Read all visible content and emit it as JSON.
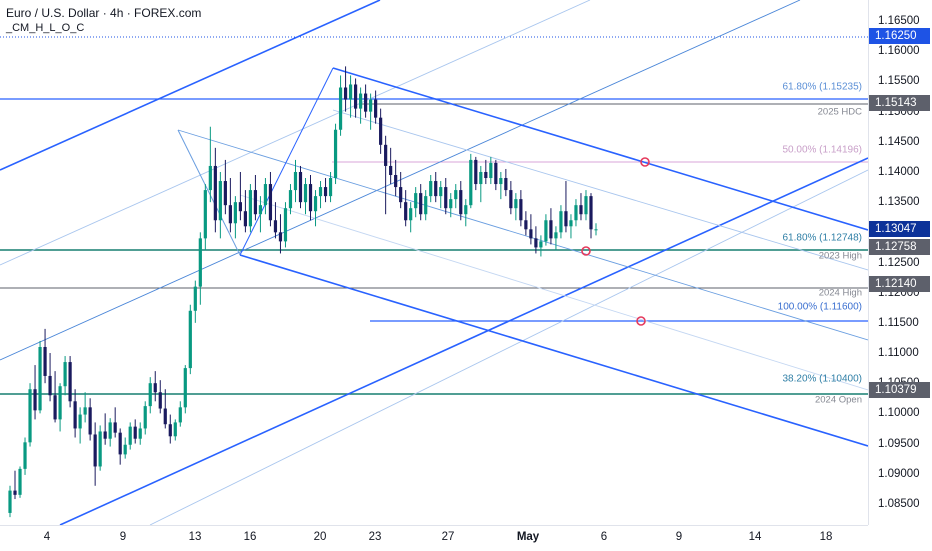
{
  "header": {
    "title": "Euro / U.S. Dollar · 4h · FOREX.com",
    "indicator": "_CM_H_L_O_C"
  },
  "chart_data": {
    "type": "candlestick",
    "ylim": [
      1.0815,
      1.1685
    ],
    "y_ticks": [
      1.165,
      1.16,
      1.155,
      1.15,
      1.145,
      1.14,
      1.135,
      1.13,
      1.125,
      1.12,
      1.115,
      1.11,
      1.105,
      1.1,
      1.095,
      1.09,
      1.085
    ],
    "y_tick_labels": [
      "1.16500",
      "1.16000",
      "1.15500",
      "1.15000",
      "1.14500",
      "1.14000",
      "1.13500",
      "1.13000",
      "1.12500",
      "1.12000",
      "1.11500",
      "1.11000",
      "1.10500",
      "1.10000",
      "1.09500",
      "1.09000",
      "1.08500"
    ],
    "x_tick_labels": [
      {
        "label": "4",
        "bold": false
      },
      {
        "label": "9",
        "bold": false
      },
      {
        "label": "13",
        "bold": false
      },
      {
        "label": "16",
        "bold": false
      },
      {
        "label": "20",
        "bold": false
      },
      {
        "label": "23",
        "bold": false
      },
      {
        "label": "27",
        "bold": false
      },
      {
        "label": "May",
        "bold": true
      },
      {
        "label": "6",
        "bold": false
      },
      {
        "label": "9",
        "bold": false
      },
      {
        "label": "14",
        "bold": false
      },
      {
        "label": "18",
        "bold": false
      }
    ],
    "price_badges": [
      {
        "value": "1.16250",
        "bg": "#1e53e5",
        "color": "#ffffff",
        "price": 1.1625
      },
      {
        "value": "1.15143",
        "bg": "#5d606b",
        "color": "#ffffff",
        "price": 1.15143
      },
      {
        "value": "1.13047",
        "bg": "#0c3299",
        "color": "#ffffff",
        "price": 1.13047
      },
      {
        "value": "1.12758",
        "bg": "#5d606b",
        "color": "#ffffff",
        "price": 1.12758
      },
      {
        "value": "1.12140",
        "bg": "#5d606b",
        "color": "#ffffff",
        "price": 1.1214
      },
      {
        "value": "1.10379",
        "bg": "#5d606b",
        "color": "#ffffff",
        "price": 1.10379
      }
    ],
    "level_labels": [
      {
        "text": "2025 HDC",
        "price": 1.1514
      },
      {
        "text": "2023 High",
        "price": 1.1275
      },
      {
        "text": "2024 High",
        "price": 1.1214
      },
      {
        "text": "2024 Open",
        "price": 1.1037
      }
    ],
    "fib_labels": [
      {
        "text": "61.80% (1.15235)",
        "price": 1.15235,
        "color": "#5b8fd6"
      },
      {
        "text": "50.00% (1.14196)",
        "price": 1.14196,
        "color": "#c9a0c9"
      },
      {
        "text": "61.80% (1.12748)",
        "price": 1.12748,
        "color": "#2f7fa6"
      },
      {
        "text": "100.00% (1.11600)",
        "price": 1.116,
        "color": "#3a6fd0"
      },
      {
        "text": "38.20% (1.10400)",
        "price": 1.104,
        "color": "#2f7fa6"
      }
    ],
    "candles": [
      [
        1.0835,
        1.088,
        1.0828,
        1.0872
      ],
      [
        1.0872,
        1.0905,
        1.0858,
        1.0865
      ],
      [
        1.0865,
        1.0912,
        1.086,
        1.0908
      ],
      [
        1.0908,
        1.096,
        1.0898,
        1.0952
      ],
      [
        1.0952,
        1.105,
        1.0945,
        1.104
      ],
      [
        1.104,
        1.108,
        1.099,
        1.1005
      ],
      [
        1.1005,
        1.112,
        1.1,
        1.111
      ],
      [
        1.111,
        1.114,
        1.105,
        1.1062
      ],
      [
        1.1062,
        1.11,
        1.102,
        1.103
      ],
      [
        1.103,
        1.107,
        1.0985,
        1.099
      ],
      [
        1.099,
        1.105,
        1.097,
        1.1045
      ],
      [
        1.1045,
        1.1095,
        1.103,
        1.1085
      ],
      [
        1.1085,
        1.1095,
        1.101,
        1.102
      ],
      [
        1.102,
        1.104,
        1.096,
        1.0975
      ],
      [
        1.0975,
        1.101,
        1.095,
        1.0998
      ],
      [
        1.0998,
        1.1035,
        1.0985,
        1.101
      ],
      [
        1.101,
        1.1025,
        1.0955,
        1.0965
      ],
      [
        1.0965,
        1.0985,
        1.088,
        1.0912
      ],
      [
        1.0912,
        1.098,
        1.0905,
        1.097
      ],
      [
        1.097,
        1.1,
        1.0948,
        1.0958
      ],
      [
        1.0958,
        1.0992,
        1.0945,
        1.0985
      ],
      [
        1.0985,
        1.101,
        1.096,
        1.0968
      ],
      [
        1.0968,
        1.0975,
        1.0915,
        1.0932
      ],
      [
        1.0932,
        1.096,
        1.0925,
        1.0948
      ],
      [
        1.0948,
        1.0985,
        1.094,
        1.0978
      ],
      [
        1.0978,
        1.099,
        1.095,
        1.0958
      ],
      [
        1.0958,
        1.0985,
        1.0948,
        1.0975
      ],
      [
        1.0975,
        1.102,
        1.0965,
        1.1012
      ],
      [
        1.1012,
        1.106,
        1.1,
        1.105
      ],
      [
        1.105,
        1.107,
        1.102,
        1.1035
      ],
      [
        1.1035,
        1.1055,
        1.1,
        1.1008
      ],
      [
        1.1008,
        1.104,
        1.0975,
        1.0982
      ],
      [
        1.0982,
        1.0998,
        1.095,
        1.0962
      ],
      [
        1.0962,
        1.099,
        1.0955,
        1.0985
      ],
      [
        1.0985,
        1.102,
        1.0978,
        1.101
      ],
      [
        1.101,
        1.108,
        1.1,
        1.1075
      ],
      [
        1.1075,
        1.118,
        1.1065,
        1.117
      ],
      [
        1.117,
        1.122,
        1.115,
        1.121
      ],
      [
        1.121,
        1.13,
        1.118,
        1.129
      ],
      [
        1.129,
        1.138,
        1.127,
        1.137
      ],
      [
        1.137,
        1.1475,
        1.135,
        1.141
      ],
      [
        1.141,
        1.144,
        1.13,
        1.132
      ],
      [
        1.132,
        1.14,
        1.129,
        1.1385
      ],
      [
        1.1385,
        1.142,
        1.133,
        1.1345
      ],
      [
        1.1345,
        1.139,
        1.13,
        1.1315
      ],
      [
        1.1315,
        1.136,
        1.129,
        1.135
      ],
      [
        1.135,
        1.14,
        1.132,
        1.1335
      ],
      [
        1.1335,
        1.137,
        1.13,
        1.131
      ],
      [
        1.131,
        1.138,
        1.13,
        1.137
      ],
      [
        1.137,
        1.1395,
        1.132,
        1.133
      ],
      [
        1.133,
        1.136,
        1.13,
        1.1345
      ],
      [
        1.1345,
        1.139,
        1.133,
        1.138
      ],
      [
        1.138,
        1.14,
        1.131,
        1.132
      ],
      [
        1.132,
        1.135,
        1.129,
        1.13
      ],
      [
        1.13,
        1.133,
        1.1265,
        1.1285
      ],
      [
        1.1285,
        1.135,
        1.1275,
        1.134
      ],
      [
        1.134,
        1.138,
        1.133,
        1.137
      ],
      [
        1.137,
        1.142,
        1.135,
        1.14
      ],
      [
        1.14,
        1.141,
        1.134,
        1.135
      ],
      [
        1.135,
        1.139,
        1.133,
        1.138
      ],
      [
        1.138,
        1.1395,
        1.132,
        1.1335
      ],
      [
        1.1335,
        1.137,
        1.131,
        1.136
      ],
      [
        1.136,
        1.1385,
        1.134,
        1.1375
      ],
      [
        1.1375,
        1.139,
        1.135,
        1.136
      ],
      [
        1.136,
        1.14,
        1.135,
        1.139
      ],
      [
        1.139,
        1.148,
        1.138,
        1.147
      ],
      [
        1.147,
        1.156,
        1.146,
        1.154
      ],
      [
        1.154,
        1.1575,
        1.15,
        1.152
      ],
      [
        1.152,
        1.156,
        1.149,
        1.1545
      ],
      [
        1.1545,
        1.1555,
        1.149,
        1.1505
      ],
      [
        1.1505,
        1.154,
        1.148,
        1.153
      ],
      [
        1.153,
        1.1545,
        1.149,
        1.15
      ],
      [
        1.15,
        1.153,
        1.147,
        1.152
      ],
      [
        1.152,
        1.1535,
        1.148,
        1.149
      ],
      [
        1.149,
        1.1505,
        1.143,
        1.1445
      ],
      [
        1.1445,
        1.146,
        1.133,
        1.141
      ],
      [
        1.141,
        1.144,
        1.138,
        1.1395
      ],
      [
        1.1395,
        1.142,
        1.136,
        1.1375
      ],
      [
        1.1375,
        1.14,
        1.134,
        1.135
      ],
      [
        1.135,
        1.137,
        1.131,
        1.132
      ],
      [
        1.132,
        1.135,
        1.13,
        1.134
      ],
      [
        1.134,
        1.1375,
        1.1325,
        1.1365
      ],
      [
        1.1365,
        1.138,
        1.132,
        1.133
      ],
      [
        1.133,
        1.137,
        1.132,
        1.136
      ],
      [
        1.136,
        1.1395,
        1.135,
        1.1385
      ],
      [
        1.1385,
        1.14,
        1.135,
        1.136
      ],
      [
        1.136,
        1.1385,
        1.134,
        1.1375
      ],
      [
        1.1375,
        1.139,
        1.133,
        1.134
      ],
      [
        1.134,
        1.1365,
        1.1325,
        1.1355
      ],
      [
        1.1355,
        1.138,
        1.134,
        1.137
      ],
      [
        1.137,
        1.1385,
        1.132,
        1.133
      ],
      [
        1.133,
        1.1355,
        1.131,
        1.1345
      ],
      [
        1.1345,
        1.143,
        1.134,
        1.142
      ],
      [
        1.142,
        1.1425,
        1.137,
        1.138
      ],
      [
        1.138,
        1.141,
        1.135,
        1.14
      ],
      [
        1.14,
        1.142,
        1.138,
        1.139
      ],
      [
        1.139,
        1.1425,
        1.138,
        1.1415
      ],
      [
        1.1415,
        1.142,
        1.137,
        1.138
      ],
      [
        1.138,
        1.14,
        1.1355,
        1.139
      ],
      [
        1.139,
        1.1405,
        1.136,
        1.137
      ],
      [
        1.137,
        1.1385,
        1.133,
        1.134
      ],
      [
        1.134,
        1.1365,
        1.132,
        1.1355
      ],
      [
        1.1355,
        1.137,
        1.131,
        1.132
      ],
      [
        1.132,
        1.1335,
        1.1295,
        1.1305
      ],
      [
        1.1305,
        1.133,
        1.128,
        1.129
      ],
      [
        1.129,
        1.131,
        1.1265,
        1.1275
      ],
      [
        1.1275,
        1.1295,
        1.126,
        1.1285
      ],
      [
        1.1285,
        1.133,
        1.1278,
        1.132
      ],
      [
        1.132,
        1.134,
        1.128,
        1.129
      ],
      [
        1.129,
        1.131,
        1.127,
        1.13
      ],
      [
        1.13,
        1.1345,
        1.129,
        1.1335
      ],
      [
        1.1335,
        1.1385,
        1.13,
        1.131
      ],
      [
        1.131,
        1.133,
        1.129,
        1.132
      ],
      [
        1.132,
        1.1355,
        1.131,
        1.1345
      ],
      [
        1.1345,
        1.1365,
        1.132,
        1.133
      ],
      [
        1.133,
        1.137,
        1.132,
        1.136
      ],
      [
        1.136,
        1.1365,
        1.129,
        1.1305
      ],
      [
        1.1305,
        1.1315,
        1.1295,
        1.1305
      ]
    ]
  }
}
